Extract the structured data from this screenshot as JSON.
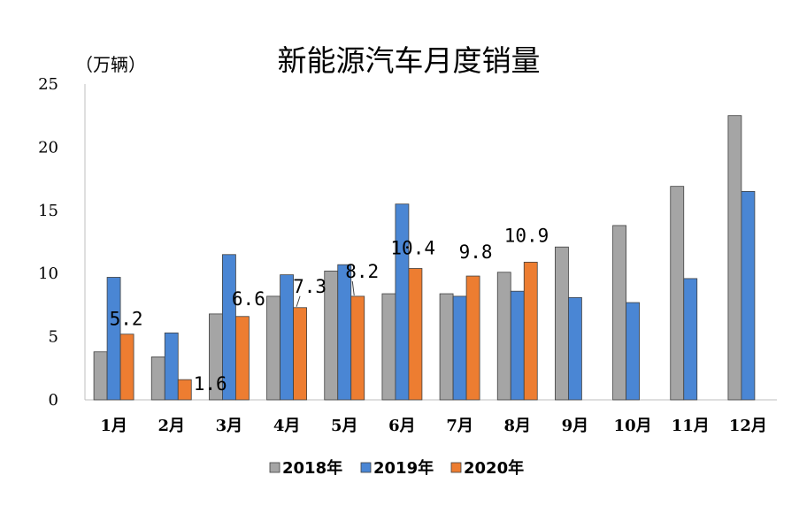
{
  "chart_data": {
    "type": "bar",
    "title": "新能源汽车月度销量",
    "ylabel": "（万辆）",
    "xlabel": "",
    "ylim": [
      0,
      25
    ],
    "yticks": [
      0,
      5,
      10,
      15,
      20,
      25
    ],
    "categories": [
      "1月",
      "2月",
      "3月",
      "4月",
      "5月",
      "6月",
      "7月",
      "8月",
      "9月",
      "10月",
      "11月",
      "12月"
    ],
    "series": [
      {
        "name": "2018年",
        "color": "#a5a5a5",
        "values": [
          3.8,
          3.4,
          6.8,
          8.2,
          10.2,
          8.4,
          8.4,
          10.1,
          12.1,
          13.8,
          16.9,
          22.5
        ]
      },
      {
        "name": "2019年",
        "color": "#4a86d4",
        "values": [
          9.7,
          5.3,
          11.5,
          9.9,
          10.7,
          15.5,
          8.2,
          8.6,
          8.1,
          7.7,
          9.6,
          16.5
        ]
      },
      {
        "name": "2020年",
        "color": "#ed7d31",
        "values": [
          5.2,
          1.6,
          6.6,
          7.3,
          8.2,
          10.4,
          9.8,
          10.9,
          null,
          null,
          null,
          null
        ]
      }
    ],
    "data_labels": [
      "5.2",
      "1.6",
      "6.6",
      "7.3",
      "8.2",
      "10.4",
      "9.8",
      "10.9"
    ],
    "legend_position": "bottom",
    "grid": false
  }
}
